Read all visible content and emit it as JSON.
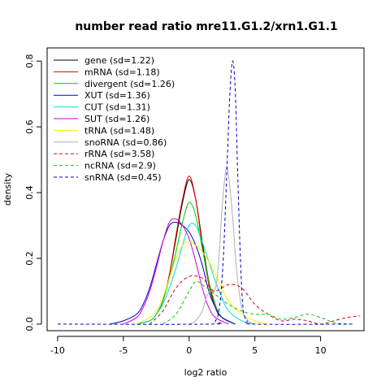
{
  "chart_data": {
    "type": "line",
    "title": "number read ratio mre11.G1.2/xrn1.G1.1",
    "xlabel": "log2 ratio",
    "ylabel": "density",
    "xlim": [
      -10.8,
      13.3
    ],
    "ylim": [
      -0.02,
      0.84
    ],
    "x_ticks": [
      "-10",
      "-5",
      "0",
      "5",
      "10"
    ],
    "x_tick_values": [
      -10,
      -5,
      0,
      5,
      10
    ],
    "y_ticks": [
      "0.0",
      "0.2",
      "0.4",
      "0.6",
      "0.8"
    ],
    "y_tick_values": [
      0,
      0.2,
      0.4,
      0.6,
      0.8
    ],
    "legend_position": "top-left",
    "grid": false,
    "series": [
      {
        "name": "gene (sd=1.22)",
        "color": "#000000",
        "dash": "solid",
        "points": [
          [
            -4,
            0
          ],
          [
            -3,
            0.01
          ],
          [
            -2.5,
            0.03
          ],
          [
            -2,
            0.07
          ],
          [
            -1.5,
            0.15
          ],
          [
            -1,
            0.26
          ],
          [
            -0.5,
            0.37
          ],
          [
            0,
            0.44
          ],
          [
            0.5,
            0.38
          ],
          [
            1,
            0.25
          ],
          [
            1.5,
            0.13
          ],
          [
            2,
            0.05
          ],
          [
            2.5,
            0.02
          ],
          [
            3.5,
            0
          ]
        ]
      },
      {
        "name": "mRNA (sd=1.18)",
        "color": "#df0000",
        "dash": "solid",
        "points": [
          [
            -4,
            0
          ],
          [
            -3,
            0.01
          ],
          [
            -2.5,
            0.03
          ],
          [
            -2,
            0.07
          ],
          [
            -1.5,
            0.15
          ],
          [
            -1,
            0.27
          ],
          [
            -0.5,
            0.38
          ],
          [
            0,
            0.45
          ],
          [
            0.5,
            0.38
          ],
          [
            1,
            0.24
          ],
          [
            1.5,
            0.12
          ],
          [
            2,
            0.05
          ],
          [
            2.5,
            0.02
          ],
          [
            3.5,
            0
          ]
        ]
      },
      {
        "name": "divergent (sd=1.26)",
        "color": "#00cd00",
        "dash": "solid",
        "points": [
          [
            -4,
            0
          ],
          [
            -3,
            0.01
          ],
          [
            -2.5,
            0.03
          ],
          [
            -2,
            0.07
          ],
          [
            -1.5,
            0.14
          ],
          [
            -1,
            0.22
          ],
          [
            -0.5,
            0.31
          ],
          [
            0,
            0.37
          ],
          [
            0.5,
            0.33
          ],
          [
            1,
            0.23
          ],
          [
            1.5,
            0.13
          ],
          [
            2,
            0.06
          ],
          [
            2.5,
            0.02
          ],
          [
            3.5,
            0
          ]
        ]
      },
      {
        "name": "XUT (sd=1.36)",
        "color": "#0000cd",
        "dash": "solid",
        "points": [
          [
            -6,
            0
          ],
          [
            -5,
            0.01
          ],
          [
            -4,
            0.03
          ],
          [
            -3.5,
            0.06
          ],
          [
            -3,
            0.11
          ],
          [
            -2.5,
            0.18
          ],
          [
            -2,
            0.25
          ],
          [
            -1.5,
            0.3
          ],
          [
            -1,
            0.31
          ],
          [
            -0.5,
            0.3
          ],
          [
            0,
            0.28
          ],
          [
            0.5,
            0.24
          ],
          [
            1,
            0.18
          ],
          [
            1.5,
            0.1
          ],
          [
            2,
            0.05
          ],
          [
            2.5,
            0.02
          ],
          [
            3.5,
            0
          ]
        ]
      },
      {
        "name": "CUT (sd=1.31)",
        "color": "#00dddd",
        "dash": "solid",
        "points": [
          [
            -4,
            0
          ],
          [
            -3,
            0.01
          ],
          [
            -2.5,
            0.03
          ],
          [
            -2,
            0.06
          ],
          [
            -1.5,
            0.11
          ],
          [
            -1,
            0.17
          ],
          [
            -0.5,
            0.24
          ],
          [
            0,
            0.3
          ],
          [
            0.5,
            0.3
          ],
          [
            1,
            0.25
          ],
          [
            1.5,
            0.19
          ],
          [
            2,
            0.13
          ],
          [
            2.5,
            0.08
          ],
          [
            3,
            0.04
          ],
          [
            4,
            0.01
          ],
          [
            5,
            0
          ]
        ]
      },
      {
        "name": "SUT (sd=1.26)",
        "color": "#cc00cc",
        "dash": "solid",
        "points": [
          [
            -5,
            0
          ],
          [
            -4,
            0.02
          ],
          [
            -3.5,
            0.05
          ],
          [
            -3,
            0.1
          ],
          [
            -2.5,
            0.17
          ],
          [
            -2,
            0.25
          ],
          [
            -1.5,
            0.31
          ],
          [
            -1,
            0.32
          ],
          [
            -0.5,
            0.3
          ],
          [
            0,
            0.26
          ],
          [
            0.5,
            0.19
          ],
          [
            1,
            0.11
          ],
          [
            1.5,
            0.05
          ],
          [
            2,
            0.02
          ],
          [
            3,
            0
          ]
        ]
      },
      {
        "name": "tRNA (sd=1.48)",
        "color": "#ffee00",
        "dash": "solid",
        "points": [
          [
            -4,
            0
          ],
          [
            -3,
            0.02
          ],
          [
            -2.5,
            0.04
          ],
          [
            -2,
            0.08
          ],
          [
            -1.5,
            0.14
          ],
          [
            -1,
            0.2
          ],
          [
            -0.5,
            0.24
          ],
          [
            0,
            0.25
          ],
          [
            0.5,
            0.24
          ],
          [
            1,
            0.22
          ],
          [
            1.5,
            0.19
          ],
          [
            2,
            0.15
          ],
          [
            2.5,
            0.11
          ],
          [
            3,
            0.07
          ],
          [
            4,
            0.03
          ],
          [
            5,
            0.01
          ],
          [
            6,
            0
          ]
        ]
      },
      {
        "name": "snoRNA (sd=0.86)",
        "color": "#b0b0b0",
        "dash": "solid",
        "points": [
          [
            0,
            0
          ],
          [
            0.5,
            0.01
          ],
          [
            1,
            0.04
          ],
          [
            1.3,
            0.08
          ],
          [
            1.6,
            0.1
          ],
          [
            1.9,
            0.1
          ],
          [
            2.1,
            0.13
          ],
          [
            2.3,
            0.22
          ],
          [
            2.5,
            0.35
          ],
          [
            2.8,
            0.47
          ],
          [
            3,
            0.45
          ],
          [
            3.3,
            0.33
          ],
          [
            3.6,
            0.17
          ],
          [
            4,
            0.05
          ],
          [
            4.5,
            0.01
          ],
          [
            5,
            0
          ]
        ]
      },
      {
        "name": "rRNA (sd=3.58)",
        "color": "#df0000",
        "dash": "dash",
        "points": [
          [
            -3,
            0
          ],
          [
            -2,
            0.04
          ],
          [
            -1,
            0.11
          ],
          [
            0,
            0.145
          ],
          [
            1,
            0.14
          ],
          [
            1.5,
            0.115
          ],
          [
            2,
            0.1
          ],
          [
            3,
            0.12
          ],
          [
            4,
            0.11
          ],
          [
            5,
            0.06
          ],
          [
            6,
            0.03
          ],
          [
            7,
            0.01
          ],
          [
            8,
            0.015
          ],
          [
            9,
            0.01
          ],
          [
            10,
            0
          ],
          [
            11,
            0.01
          ],
          [
            12,
            0.02
          ],
          [
            13,
            0.025
          ]
        ]
      },
      {
        "name": "ncRNA (sd=2.9)",
        "color": "#00cd00",
        "dash": "dash",
        "points": [
          [
            -2,
            0
          ],
          [
            -1,
            0.03
          ],
          [
            0,
            0.1
          ],
          [
            0.5,
            0.13
          ],
          [
            1,
            0.12
          ],
          [
            2,
            0.09
          ],
          [
            3,
            0.06
          ],
          [
            4,
            0.04
          ],
          [
            5,
            0.03
          ],
          [
            6,
            0.03
          ],
          [
            7,
            0.015
          ],
          [
            8,
            0.02
          ],
          [
            9,
            0.03
          ],
          [
            10,
            0.02
          ],
          [
            11,
            0.005
          ],
          [
            12,
            0
          ]
        ]
      },
      {
        "name": "snRNA (sd=0.45)",
        "color": "#0000cd",
        "dash": "dash",
        "points": [
          [
            -10,
            0
          ],
          [
            1.5,
            0
          ],
          [
            2,
            0.01
          ],
          [
            2.3,
            0.05
          ],
          [
            2.6,
            0.2
          ],
          [
            2.9,
            0.5
          ],
          [
            3.1,
            0.7
          ],
          [
            3.3,
            0.8
          ],
          [
            3.5,
            0.72
          ],
          [
            3.7,
            0.45
          ],
          [
            3.9,
            0.2
          ],
          [
            4.1,
            0.05
          ],
          [
            4.4,
            0.01
          ],
          [
            5,
            0
          ],
          [
            12.5,
            0
          ]
        ]
      }
    ]
  }
}
